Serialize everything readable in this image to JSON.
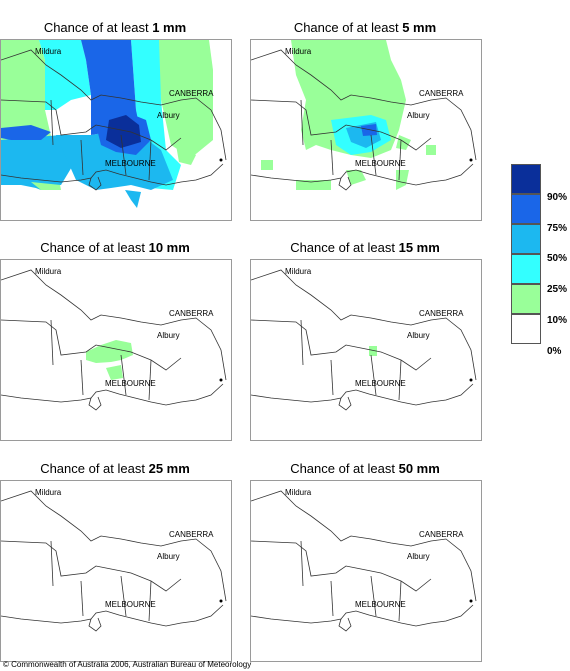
{
  "titles": [
    {
      "prefix": "Chance of at least ",
      "amount": "1 mm"
    },
    {
      "prefix": "Chance of at least ",
      "amount": "5 mm"
    },
    {
      "prefix": "Chance of at least ",
      "amount": "10 mm"
    },
    {
      "prefix": "Chance of at least ",
      "amount": "15 mm"
    },
    {
      "prefix": "Chance of at least ",
      "amount": "25 mm"
    },
    {
      "prefix": "Chance of at least ",
      "amount": "50 mm"
    }
  ],
  "places": {
    "mildura": "Mildura",
    "canberra": "CANBERRA",
    "albury": "Albury",
    "melbourne": "MELBOURNE"
  },
  "legend": {
    "labels": [
      "90%",
      "75%",
      "50%",
      "25%",
      "10%",
      "0%"
    ],
    "colors": [
      "#0a2f9a",
      "#1a66e8",
      "#1cb8f0",
      "#33ffff",
      "#99ff99",
      "#ffffff"
    ]
  },
  "copyright": "© Commonwealth of Australia 2006, Australian Bureau of Meteorology"
}
